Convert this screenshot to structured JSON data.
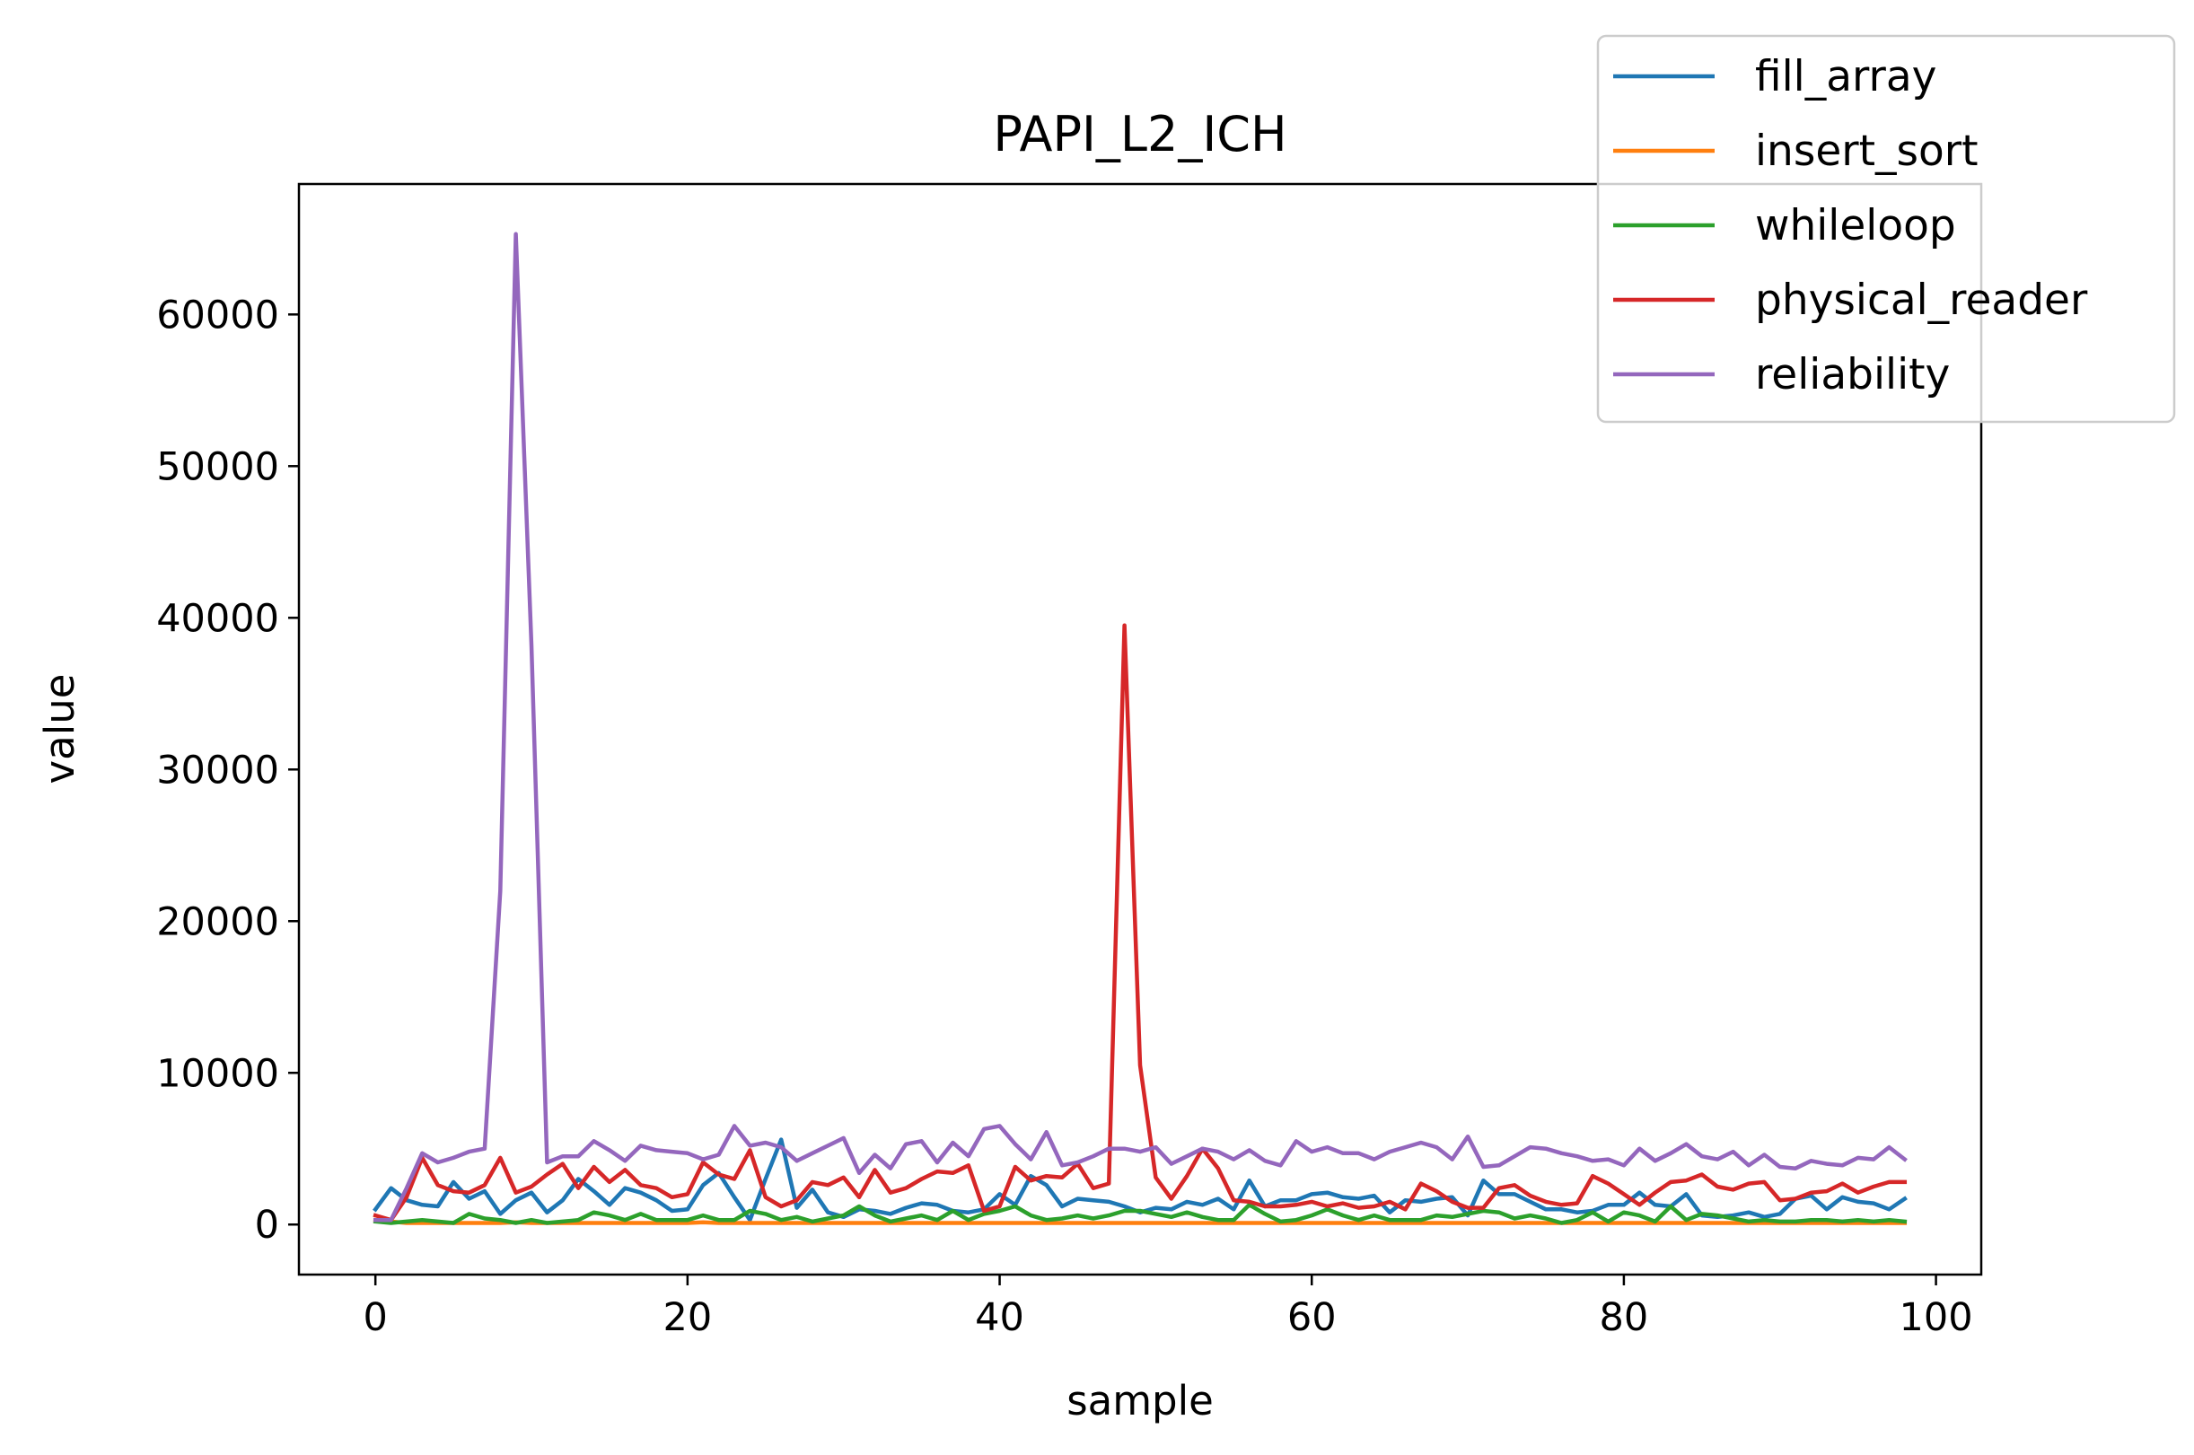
{
  "chart_data": {
    "type": "line",
    "title": "PAPI_L2_ICH",
    "xlabel": "sample",
    "ylabel": "value",
    "xlim": [
      -4.9,
      102.9
    ],
    "ylim": [
      -3300,
      68600
    ],
    "xticks": [
      0,
      20,
      40,
      60,
      80,
      100
    ],
    "yticks": [
      0,
      10000,
      20000,
      30000,
      40000,
      50000,
      60000
    ],
    "grid": false,
    "legend_position": "top-right",
    "x": [
      0,
      1,
      2,
      3,
      4,
      5,
      6,
      7,
      8,
      9,
      10,
      11,
      12,
      13,
      14,
      15,
      16,
      17,
      18,
      19,
      20,
      21,
      22,
      23,
      24,
      25,
      26,
      27,
      28,
      29,
      30,
      31,
      32,
      33,
      34,
      35,
      36,
      37,
      38,
      39,
      40,
      41,
      42,
      43,
      44,
      45,
      46,
      47,
      48,
      49,
      50,
      51,
      52,
      53,
      54,
      55,
      56,
      57,
      58,
      59,
      60,
      61,
      62,
      63,
      64,
      65,
      66,
      67,
      68,
      69,
      70,
      71,
      72,
      73,
      74,
      75,
      76,
      77,
      78,
      79,
      80,
      81,
      82,
      83,
      84,
      85,
      86,
      87,
      88,
      89,
      90,
      91,
      92,
      93,
      94,
      95,
      96,
      97,
      98
    ],
    "series": [
      {
        "name": "fill_array",
        "color": "#1f77b4",
        "values": [
          1000,
          2400,
          1600,
          1300,
          1200,
          2800,
          1700,
          2200,
          700,
          1600,
          2100,
          800,
          1600,
          3000,
          2200,
          1300,
          2400,
          2100,
          1600,
          900,
          1000,
          2600,
          3400,
          1800,
          300,
          3000,
          5600,
          1100,
          2300,
          800,
          500,
          1000,
          900,
          700,
          1100,
          1400,
          1300,
          900,
          800,
          1000,
          2000,
          1300,
          3200,
          2600,
          1200,
          1700,
          1600,
          1500,
          1200,
          800,
          1100,
          1000,
          1500,
          1300,
          1700,
          1000,
          2900,
          1200,
          1600,
          1600,
          2000,
          2100,
          1800,
          1700,
          1900,
          800,
          1600,
          1500,
          1700,
          1800,
          600,
          2900,
          2000,
          2000,
          1500,
          1000,
          1000,
          800,
          900,
          1300,
          1300,
          2100,
          1300,
          1200,
          2000,
          600,
          500,
          600,
          800,
          500,
          700,
          1700,
          1900,
          1000,
          1800,
          1500,
          1400,
          1000,
          1700
        ]
      },
      {
        "name": "insert_sort",
        "color": "#ff7f0e",
        "values": [
          300,
          200,
          100,
          100,
          100,
          100,
          100,
          100,
          100,
          150,
          100,
          100,
          100,
          100,
          100,
          100,
          100,
          100,
          100,
          100,
          100,
          150,
          100,
          100,
          100,
          100,
          100,
          100,
          100,
          100,
          100,
          100,
          100,
          100,
          100,
          100,
          100,
          100,
          100,
          100,
          100,
          100,
          100,
          100,
          100,
          100,
          100,
          100,
          100,
          100,
          100,
          100,
          100,
          100,
          100,
          100,
          100,
          100,
          100,
          100,
          100,
          100,
          100,
          100,
          100,
          100,
          100,
          100,
          100,
          100,
          100,
          100,
          100,
          100,
          100,
          100,
          100,
          100,
          100,
          100,
          100,
          100,
          100,
          100,
          100,
          100,
          100,
          100,
          100,
          100,
          100,
          100,
          100,
          100,
          100,
          100,
          100,
          100,
          100
        ]
      },
      {
        "name": "whileloop",
        "color": "#2ca02c",
        "values": [
          200,
          100,
          200,
          300,
          200,
          100,
          700,
          400,
          300,
          100,
          300,
          100,
          200,
          300,
          800,
          600,
          300,
          700,
          300,
          300,
          300,
          600,
          300,
          300,
          900,
          700,
          300,
          500,
          200,
          400,
          600,
          1200,
          600,
          200,
          400,
          600,
          300,
          900,
          300,
          700,
          900,
          1200,
          600,
          300,
          400,
          600,
          400,
          600,
          900,
          900,
          700,
          500,
          800,
          500,
          300,
          300,
          1300,
          700,
          200,
          300,
          600,
          1000,
          600,
          300,
          600,
          300,
          300,
          300,
          600,
          500,
          700,
          900,
          800,
          400,
          600,
          400,
          100,
          300,
          800,
          200,
          800,
          600,
          200,
          1200,
          300,
          700,
          600,
          400,
          200,
          300,
          200,
          200,
          300,
          300,
          200,
          300,
          200,
          300,
          200
        ]
      },
      {
        "name": "physical_reader",
        "color": "#d62728",
        "values": [
          600,
          300,
          1800,
          4400,
          2600,
          2200,
          2100,
          2600,
          4400,
          2100,
          2500,
          3300,
          4000,
          2400,
          3800,
          2800,
          3600,
          2600,
          2400,
          1800,
          2000,
          4100,
          3300,
          3000,
          4900,
          1800,
          1200,
          1600,
          2800,
          2600,
          3100,
          1800,
          3600,
          2100,
          2400,
          3000,
          3500,
          3400,
          3900,
          900,
          1200,
          3800,
          2900,
          3200,
          3100,
          4000,
          2400,
          2700,
          39500,
          10500,
          3100,
          1700,
          3200,
          5000,
          3700,
          1600,
          1500,
          1200,
          1200,
          1300,
          1500,
          1200,
          1400,
          1100,
          1200,
          1500,
          1000,
          2700,
          2200,
          1500,
          1100,
          1100,
          2400,
          2600,
          1900,
          1500,
          1300,
          1400,
          3200,
          2700,
          2000,
          1300,
          2100,
          2800,
          2900,
          3300,
          2500,
          2300,
          2700,
          2800,
          1600,
          1700,
          2100,
          2200,
          2700,
          2100,
          2500,
          2800,
          2800
        ]
      },
      {
        "name": "reliability",
        "color": "#9467bd",
        "values": [
          300,
          300,
          2400,
          4700,
          4100,
          4400,
          4800,
          5000,
          22000,
          65300,
          38200,
          4100,
          4500,
          4500,
          5500,
          4900,
          4200,
          5200,
          4900,
          4800,
          4700,
          4300,
          4600,
          6500,
          5200,
          5400,
          5100,
          4200,
          4700,
          5200,
          5700,
          3400,
          4600,
          3700,
          5300,
          5500,
          4100,
          5400,
          4500,
          6300,
          6500,
          5300,
          4300,
          6100,
          3900,
          4100,
          4500,
          5000,
          5000,
          4800,
          5100,
          4000,
          4500,
          5000,
          4800,
          4300,
          4900,
          4200,
          3900,
          5500,
          4800,
          5100,
          4700,
          4700,
          4300,
          4800,
          5100,
          5400,
          5100,
          4300,
          5800,
          3800,
          3900,
          4500,
          5100,
          5000,
          4700,
          4500,
          4200,
          4300,
          3900,
          5000,
          4200,
          4700,
          5300,
          4500,
          4300,
          4800,
          3900,
          4600,
          3800,
          3700,
          4200,
          4000,
          3900,
          4400,
          4300,
          5100,
          4300
        ]
      }
    ]
  }
}
